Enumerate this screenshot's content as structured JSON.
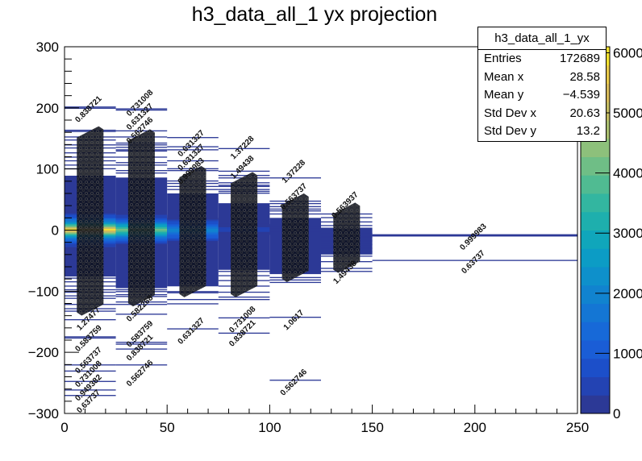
{
  "title": "h3_data_all_1 yx projection",
  "stats": {
    "name": "h3_data_all_1_yx",
    "rows": [
      {
        "label": "Entries",
        "value": "172689"
      },
      {
        "label": "Mean x",
        "value": "28.58"
      },
      {
        "label": "Mean y",
        "value": "−4.539"
      },
      {
        "label": "Std Dev x",
        "value": "20.63"
      },
      {
        "label": "Std Dev y",
        "value": "13.2"
      }
    ]
  },
  "chart_data": {
    "type": "heatmap",
    "title": "h3_data_all_1 yx projection",
    "xlim": [
      0,
      250
    ],
    "ylim": [
      -300,
      300
    ],
    "zlim": [
      0,
      6100
    ],
    "x_ticks": [
      0,
      50,
      100,
      150,
      200,
      250
    ],
    "y_ticks": [
      -300,
      -200,
      -100,
      0,
      100,
      200,
      300
    ],
    "z_ticks": [
      0,
      1000,
      2000,
      3000,
      4000,
      5000,
      6000
    ],
    "y_bin_width": 2.5,
    "palette": [
      "#2c3996",
      "#2343b3",
      "#1c4fc9",
      "#1a5dd6",
      "#1769d8",
      "#1476d4",
      "#1183cf",
      "#0e90cb",
      "#0c9cc5",
      "#10a6bb",
      "#1eafad",
      "#33b6a0",
      "#50bb92",
      "#6fbe86",
      "#8dc07b",
      "#aabf70",
      "#c4bc63",
      "#d6b95a",
      "#e8c94a",
      "#f5e230",
      "#f9fb0e"
    ],
    "columns": [
      {
        "x": [
          0,
          25
        ],
        "dense": [
          -76,
          89
        ],
        "dense_count": 150,
        "profile": [
          [
            -25,
            600
          ],
          [
            -20,
            1000
          ],
          [
            -15,
            1800
          ],
          [
            -10,
            2800
          ],
          [
            -5,
            4800
          ],
          [
            0,
            6000
          ],
          [
            5,
            4200
          ],
          [
            10,
            2600
          ],
          [
            15,
            1600
          ],
          [
            20,
            900
          ],
          [
            25,
            500
          ]
        ],
        "sparse": [
          201,
          199,
          163,
          161,
          152,
          147,
          139,
          134,
          126,
          119,
          113,
          106,
          100,
          -79,
          -85,
          -92,
          -98,
          -102,
          -108,
          -112,
          -122,
          -129,
          -133,
          -147,
          -175,
          -177,
          -221,
          -231,
          -248,
          -262,
          -271
        ]
      },
      {
        "x": [
          25,
          50
        ],
        "dense": [
          -95,
          86
        ],
        "dense_count": 150,
        "profile": [
          [
            -20,
            700
          ],
          [
            -15,
            1300
          ],
          [
            -10,
            2200
          ],
          [
            -5,
            3300
          ],
          [
            0,
            4100
          ],
          [
            5,
            3000
          ],
          [
            10,
            1900
          ],
          [
            15,
            1100
          ],
          [
            20,
            600
          ]
        ],
        "sparse": [
          198,
          196,
          162,
          152,
          142,
          139,
          135,
          131,
          129,
          119,
          110,
          106,
          97,
          93,
          -98,
          -101,
          -106,
          -109,
          -118,
          -122,
          -138,
          -184,
          -187,
          -195,
          -221
        ]
      },
      {
        "x": [
          50,
          75
        ],
        "dense": [
          -92,
          60
        ],
        "dense_count": 140,
        "profile": [
          [
            -15,
            700
          ],
          [
            -10,
            1200
          ],
          [
            -5,
            1700
          ],
          [
            0,
            2000
          ],
          [
            5,
            1500
          ],
          [
            10,
            900
          ],
          [
            15,
            500
          ]
        ],
        "sparse": [
          151,
          136,
          131,
          113,
          100,
          97,
          80,
          76,
          71,
          66,
          -101,
          -103,
          -114,
          -121,
          -162
        ]
      },
      {
        "x": [
          75,
          100
        ],
        "dense": [
          -65,
          44
        ],
        "dense_count": 130,
        "profile": [
          [
            -5,
            300
          ],
          [
            0,
            400
          ],
          [
            5,
            300
          ]
        ],
        "sparse": [
          133,
          96,
          89,
          85,
          77,
          73,
          71,
          66,
          63,
          60,
          -68,
          -75,
          -83,
          -92,
          -102,
          -110,
          -114,
          -144,
          -169
        ]
      },
      {
        "x": [
          100,
          125
        ],
        "dense": [
          -72,
          20
        ],
        "dense_count": 120,
        "profile": [
          [
            0,
            250
          ]
        ],
        "sparse": [
          85,
          47,
          43,
          38,
          34,
          31,
          26,
          -78,
          -82,
          -86,
          -143,
          -246
        ]
      },
      {
        "x": [
          125,
          150
        ],
        "dense": [
          -40,
          4
        ],
        "dense_count": 110,
        "profile": [],
        "sparse": [
          26,
          20,
          13,
          7,
          -43,
          -52,
          -63,
          -68,
          -6,
          -12,
          -18,
          -24,
          -30,
          -36
        ]
      },
      {
        "x": [
          150,
          250
        ],
        "dense": null,
        "dense_count": 0,
        "profile": [],
        "sparse": [
          -8,
          -9,
          -10,
          -50
        ]
      }
    ],
    "bin_text_labels": [
      {
        "x": 12.5,
        "y": 195,
        "text": "0.838721"
      },
      {
        "x": 37.5,
        "y": 195,
        "text": "0.731008"
      },
      {
        "x": 37.5,
        "y": 188,
        "text": "0.631327"
      },
      {
        "x": 37.5,
        "y": 165,
        "text": "0.562746"
      },
      {
        "x": 62.5,
        "y": 139,
        "text": "0.631327"
      },
      {
        "x": 62.5,
        "y": 113,
        "text": "0.631327"
      },
      {
        "x": 62.5,
        "y": 97,
        "text": "0.999983"
      },
      {
        "x": 87.5,
        "y": 132,
        "text": "1.37228"
      },
      {
        "x": 87.5,
        "y": 100,
        "text": "1.49438"
      },
      {
        "x": 112.5,
        "y": 93,
        "text": "1.37228"
      },
      {
        "x": 112.5,
        "y": 52,
        "text": "0.563737"
      },
      {
        "x": 137.5,
        "y": 38,
        "text": "0.563937"
      },
      {
        "x": 12.5,
        "y": -148,
        "text": "1.27477"
      },
      {
        "x": 12.5,
        "y": -180,
        "text": "0.583759"
      },
      {
        "x": 12.5,
        "y": -236,
        "text": "0.563737"
      },
      {
        "x": 12.5,
        "y": -244,
        "text": "0.731008"
      },
      {
        "x": 12.5,
        "y": -254,
        "text": "0.949382"
      },
      {
        "x": 12.5,
        "y": -264,
        "text": "0.63737"
      },
      {
        "x": 37.5,
        "y": -131,
        "text": "0.582268"
      },
      {
        "x": 37.5,
        "y": -180,
        "text": "0.583759"
      },
      {
        "x": 37.5,
        "y": -188,
        "text": "0.838721"
      },
      {
        "x": 37.5,
        "y": -237,
        "text": "0.562746"
      },
      {
        "x": 62.5,
        "y": -168,
        "text": "0.631327"
      },
      {
        "x": 87.5,
        "y": -150,
        "text": "0.731008"
      },
      {
        "x": 87.5,
        "y": -171,
        "text": "0.838721"
      },
      {
        "x": 112.5,
        "y": -150,
        "text": "1.0617"
      },
      {
        "x": 112.5,
        "y": -252,
        "text": "0.562746"
      },
      {
        "x": 137.5,
        "y": -72,
        "text": "1.49438"
      },
      {
        "x": 200,
        "y": -14,
        "text": "0.999983"
      },
      {
        "x": 200,
        "y": -55,
        "text": "0.63737"
      }
    ],
    "text_clusters": [
      {
        "x": [
          6,
          19
        ],
        "y": [
          -140,
          170
        ]
      },
      {
        "x": [
          31,
          44
        ],
        "y": [
          -125,
          165
        ]
      },
      {
        "x": [
          56,
          69
        ],
        "y": [
          -110,
          105
        ]
      },
      {
        "x": [
          81,
          94
        ],
        "y": [
          -110,
          95
        ]
      },
      {
        "x": [
          106,
          119
        ],
        "y": [
          -85,
          60
        ]
      },
      {
        "x": [
          131,
          144
        ],
        "y": [
          -70,
          45
        ]
      }
    ]
  }
}
